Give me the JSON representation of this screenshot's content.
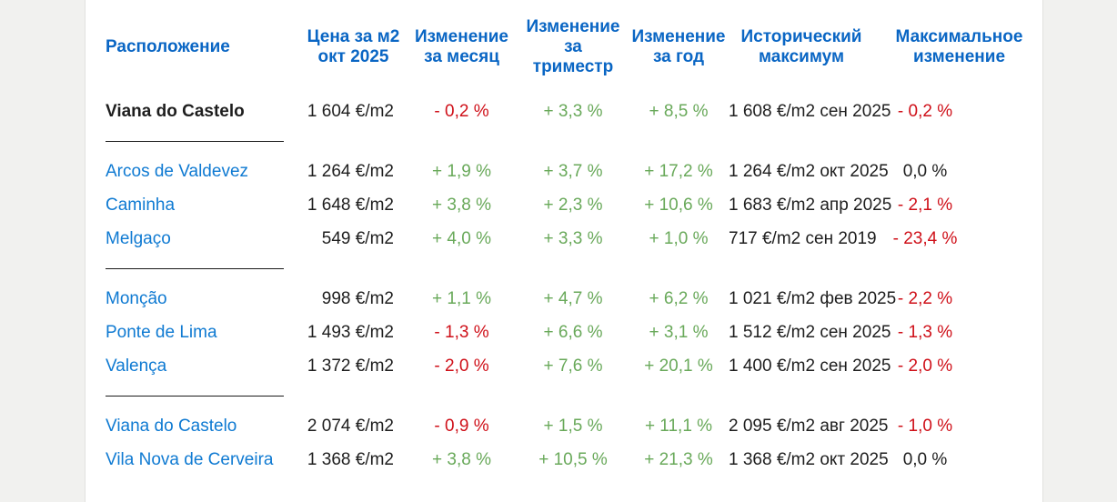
{
  "colors": {
    "background": "#f1f1ef",
    "surface": "#ffffff",
    "edge_border": "#e2e2df",
    "header_blue": "#0a66c4",
    "link_blue": "#0f7ad2",
    "positive_green": "#69a95a",
    "negative_red": "#cf1019",
    "text_dark": "#1e1e1e",
    "divider": "#1a1a1a"
  },
  "table": {
    "columns": [
      {
        "id": "location",
        "label": "Расположение",
        "label_lines": [
          "Расположение"
        ]
      },
      {
        "id": "price",
        "label": "Цена за м2 окт 2025",
        "label_lines": [
          "Цена за м2",
          "окт 2025"
        ]
      },
      {
        "id": "month-change",
        "label": "Изменение за месяц",
        "label_lines": [
          "Изменение",
          "за месяц"
        ]
      },
      {
        "id": "quarter-change",
        "label": "Изменение за триместр",
        "label_lines": [
          "Изменение",
          "за",
          "триместр"
        ]
      },
      {
        "id": "year-change",
        "label": "Изменение за год",
        "label_lines": [
          "Изменение",
          "за год"
        ]
      },
      {
        "id": "historical-max",
        "label": "Исторический максимум",
        "label_lines": [
          "Исторический",
          "максимум"
        ]
      },
      {
        "id": "max-change",
        "label": "Максимальное изменение",
        "label_lines": [
          "Максимальное",
          "изменение"
        ]
      }
    ],
    "groups": [
      {
        "rows": [
          {
            "location": "Viana do Castelo",
            "bold": true,
            "is_link": false,
            "price": "1 604 €/m2",
            "month_change": "- 0,2 %",
            "quarter_change": "+ 3,3 %",
            "year_change": "+ 8,5 %",
            "historical_max": "1 608 €/m2 сен 2025",
            "max_change": "- 0,2 %"
          }
        ]
      },
      {
        "rows": [
          {
            "location": "Arcos de Valdevez",
            "bold": false,
            "is_link": true,
            "price": "1 264 €/m2",
            "month_change": "+ 1,9 %",
            "quarter_change": "+ 3,7 %",
            "year_change": "+ 17,2 %",
            "historical_max": "1 264 €/m2 окт 2025",
            "max_change": "0,0 %"
          },
          {
            "location": "Caminha",
            "bold": false,
            "is_link": true,
            "price": "1 648 €/m2",
            "month_change": "+ 3,8 %",
            "quarter_change": "+ 2,3 %",
            "year_change": "+ 10,6 %",
            "historical_max": "1 683 €/m2 апр 2025",
            "max_change": "- 2,1 %"
          },
          {
            "location": "Melgaço",
            "bold": false,
            "is_link": true,
            "price": "549 €/m2",
            "month_change": "+ 4,0 %",
            "quarter_change": "+ 3,3 %",
            "year_change": "+ 1,0 %",
            "historical_max": "717 €/m2 сен 2019",
            "max_change": "- 23,4 %"
          }
        ]
      },
      {
        "rows": [
          {
            "location": "Monção",
            "bold": false,
            "is_link": true,
            "price": "998 €/m2",
            "month_change": "+ 1,1 %",
            "quarter_change": "+ 4,7 %",
            "year_change": "+ 6,2 %",
            "historical_max": "1 021 €/m2 фев 2025",
            "max_change": "- 2,2 %"
          },
          {
            "location": "Ponte de Lima",
            "bold": false,
            "is_link": true,
            "price": "1 493 €/m2",
            "month_change": "- 1,3 %",
            "quarter_change": "+ 6,6 %",
            "year_change": "+ 3,1 %",
            "historical_max": "1 512 €/m2 сен 2025",
            "max_change": "- 1,3 %"
          },
          {
            "location": "Valença",
            "bold": false,
            "is_link": true,
            "price": "1 372 €/m2",
            "month_change": "- 2,0 %",
            "quarter_change": "+ 7,6 %",
            "year_change": "+ 20,1 %",
            "historical_max": "1 400 €/m2 сен 2025",
            "max_change": "- 2,0 %"
          }
        ]
      },
      {
        "rows": [
          {
            "location": "Viana do Castelo",
            "bold": false,
            "is_link": true,
            "price": "2 074 €/m2",
            "month_change": "- 0,9 %",
            "quarter_change": "+ 1,5 %",
            "year_change": "+ 11,1 %",
            "historical_max": "2 095 €/m2 авг 2025",
            "max_change": "- 1,0 %"
          },
          {
            "location": "Vila Nova de Cerveira",
            "bold": false,
            "is_link": true,
            "price": "1 368 €/m2",
            "month_change": "+ 3,8 %",
            "quarter_change": "+ 10,5 %",
            "year_change": "+ 21,3 %",
            "historical_max": "1 368 €/m2 окт 2025",
            "max_change": "0,0 %"
          }
        ]
      }
    ]
  }
}
